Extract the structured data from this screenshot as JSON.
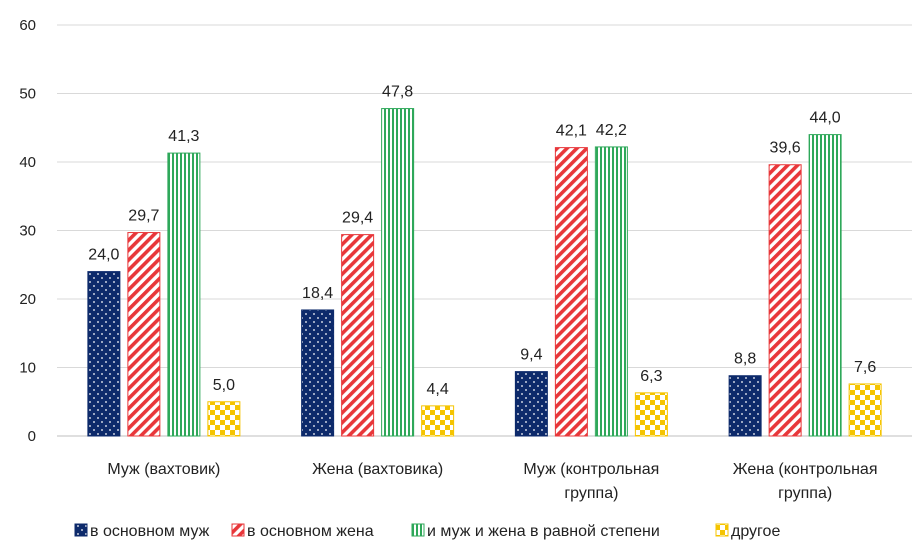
{
  "chart_data": {
    "type": "bar",
    "title": "",
    "xlabel": "",
    "ylabel": "",
    "ylim": [
      0,
      60
    ],
    "yticks": [
      0,
      10,
      20,
      30,
      40,
      50,
      60
    ],
    "grid": true,
    "legend_position": "bottom",
    "categories": [
      [
        "Муж (вахтовик)"
      ],
      [
        "Жена (вахтовика)"
      ],
      [
        "Муж (контрольная",
        "группа)"
      ],
      [
        "Жена (контрольная",
        "группа)"
      ]
    ],
    "series": [
      {
        "name": "в основном муж",
        "values": [
          24.0,
          18.4,
          9.4,
          8.8
        ],
        "labels": [
          "24,0",
          "18,4",
          "9,4",
          "8,8"
        ],
        "color": "#0d2a6b",
        "pattern": "dots"
      },
      {
        "name": "в основном жена",
        "values": [
          29.7,
          29.4,
          42.1,
          39.6
        ],
        "labels": [
          "29,7",
          "29,4",
          "42,1",
          "39,6"
        ],
        "color": "#e8373a",
        "pattern": "diagonal"
      },
      {
        "name": "и муж и жена в равной степени",
        "values": [
          41.3,
          47.8,
          42.2,
          44.0
        ],
        "labels": [
          "41,3",
          "47,8",
          "42,2",
          "44,0"
        ],
        "color": "#2fa85a",
        "pattern": "vertical"
      },
      {
        "name": "другое",
        "values": [
          5.0,
          4.4,
          6.3,
          7.6
        ],
        "labels": [
          "5,0",
          "4,4",
          "6,3",
          "7,6"
        ],
        "color": "#f5c400",
        "pattern": "checker"
      }
    ]
  }
}
